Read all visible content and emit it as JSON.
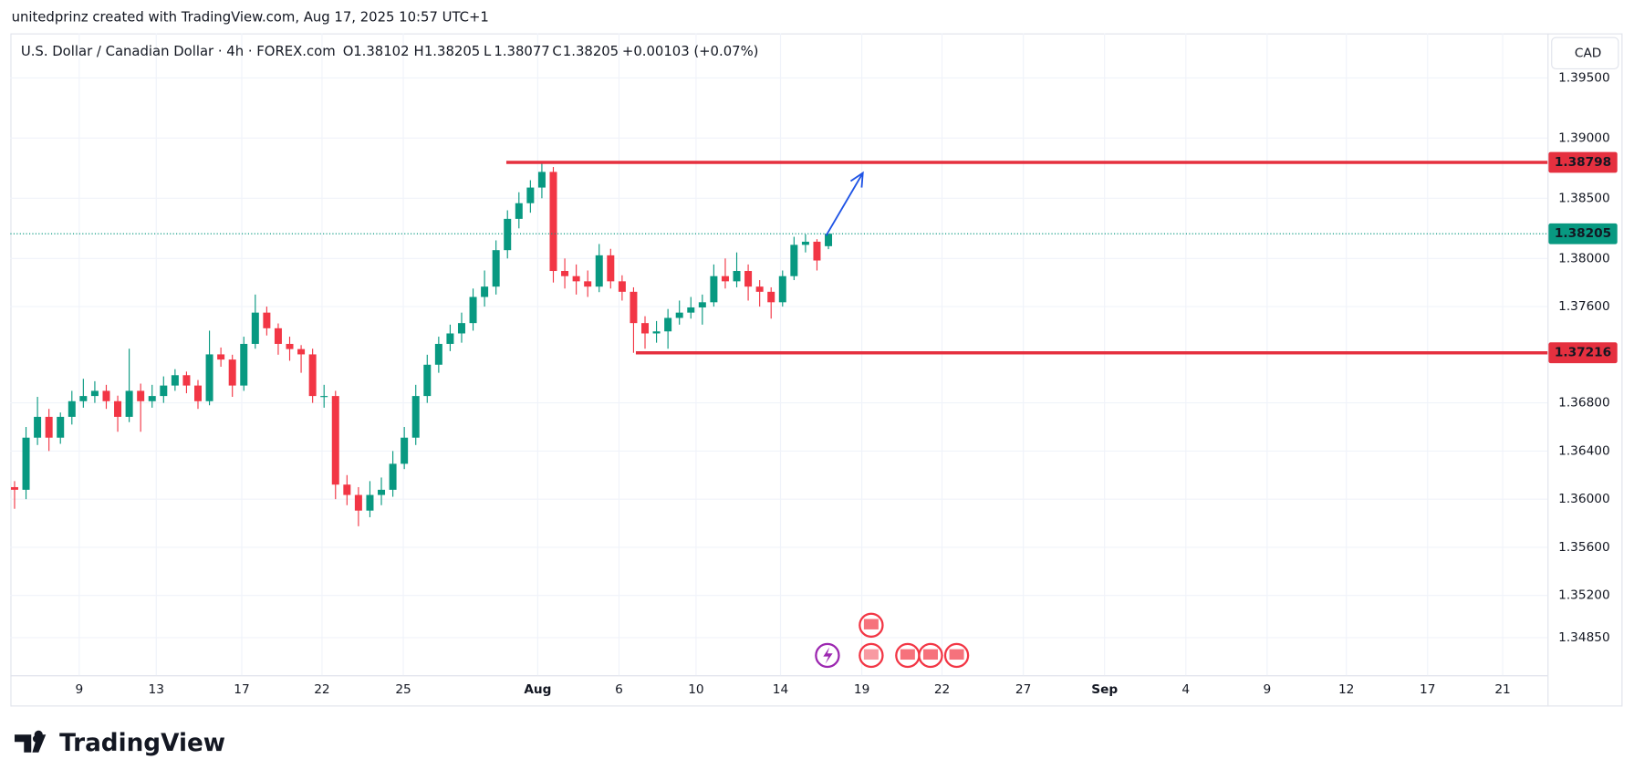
{
  "header": {
    "attribution": "unitedprinz created with TradingView.com, Aug 17, 2025 10:57 UTC+1",
    "symbol": "U.S. Dollar / Canadian Dollar · 4h · FOREX.com",
    "currency": "CAD"
  },
  "chart_data": {
    "type": "candlestick",
    "ohlc_labels": [
      "O",
      "H",
      "L",
      "C"
    ],
    "ohlc": [
      1.38102,
      1.38205,
      1.38077,
      1.38205
    ],
    "change": "+0.00103 (+0.07%)",
    "up_color": "#089981",
    "down_color": "#f23645",
    "candles": [
      [
        1.361,
        1.3615,
        1.3592,
        1.36078
      ],
      [
        1.36078,
        1.366,
        1.36,
        1.36511
      ],
      [
        1.36511,
        1.3685,
        1.3645,
        1.36684
      ],
      [
        1.36684,
        1.3675,
        1.364,
        1.36511
      ],
      [
        1.36511,
        1.3672,
        1.3646,
        1.36684
      ],
      [
        1.36684,
        1.369,
        1.3662,
        1.36814
      ],
      [
        1.36814,
        1.37,
        1.3676,
        1.36857
      ],
      [
        1.36857,
        1.3698,
        1.368,
        1.369
      ],
      [
        1.369,
        1.3695,
        1.3675,
        1.36814
      ],
      [
        1.36814,
        1.3686,
        1.3656,
        1.36684
      ],
      [
        1.36684,
        1.3725,
        1.3664,
        1.369
      ],
      [
        1.369,
        1.3696,
        1.3656,
        1.36814
      ],
      [
        1.36814,
        1.3695,
        1.3676,
        1.36857
      ],
      [
        1.36857,
        1.3702,
        1.368,
        1.36944
      ],
      [
        1.36944,
        1.3708,
        1.369,
        1.3703
      ],
      [
        1.3703,
        1.3706,
        1.3688,
        1.36944
      ],
      [
        1.36944,
        1.3699,
        1.3675,
        1.36814
      ],
      [
        1.36814,
        1.374,
        1.3678,
        1.37203
      ],
      [
        1.37203,
        1.3726,
        1.371,
        1.3716
      ],
      [
        1.3716,
        1.372,
        1.3685,
        1.36944
      ],
      [
        1.36944,
        1.3735,
        1.369,
        1.3729
      ],
      [
        1.3729,
        1.377,
        1.3725,
        1.3755
      ],
      [
        1.3755,
        1.376,
        1.3736,
        1.3742
      ],
      [
        1.3742,
        1.3746,
        1.372,
        1.3729
      ],
      [
        1.3729,
        1.3735,
        1.3715,
        1.37247
      ],
      [
        1.37247,
        1.3728,
        1.3705,
        1.37203
      ],
      [
        1.37203,
        1.3725,
        1.368,
        1.36857
      ],
      [
        1.36857,
        1.3695,
        1.3676,
        1.36857
      ],
      [
        1.36857,
        1.369,
        1.36,
        1.36121
      ],
      [
        1.36121,
        1.362,
        1.3595,
        1.36035
      ],
      [
        1.36035,
        1.361,
        1.35775,
        1.35905
      ],
      [
        1.35905,
        1.3615,
        1.3585,
        1.36035
      ],
      [
        1.36035,
        1.3618,
        1.3595,
        1.36078
      ],
      [
        1.36078,
        1.364,
        1.3602,
        1.36294
      ],
      [
        1.36294,
        1.366,
        1.3625,
        1.36511
      ],
      [
        1.36511,
        1.3695,
        1.3645,
        1.36857
      ],
      [
        1.36857,
        1.372,
        1.368,
        1.37117
      ],
      [
        1.37117,
        1.3735,
        1.3705,
        1.3729
      ],
      [
        1.3729,
        1.3745,
        1.3723,
        1.37377
      ],
      [
        1.37377,
        1.3755,
        1.373,
        1.37463
      ],
      [
        1.37463,
        1.3775,
        1.374,
        1.3768
      ],
      [
        1.3768,
        1.379,
        1.376,
        1.37766
      ],
      [
        1.37766,
        1.3815,
        1.377,
        1.38069
      ],
      [
        1.38069,
        1.384,
        1.38,
        1.38329
      ],
      [
        1.38329,
        1.3855,
        1.3825,
        1.38459
      ],
      [
        1.38459,
        1.3865,
        1.3838,
        1.38589
      ],
      [
        1.38589,
        1.38798,
        1.385,
        1.38719
      ],
      [
        1.38719,
        1.3876,
        1.378,
        1.37896
      ],
      [
        1.37896,
        1.38,
        1.3775,
        1.37853
      ],
      [
        1.37853,
        1.3795,
        1.377,
        1.3781
      ],
      [
        1.3781,
        1.379,
        1.3768,
        1.37766
      ],
      [
        1.37766,
        1.3812,
        1.3772,
        1.38026
      ],
      [
        1.38026,
        1.3808,
        1.3775,
        1.3781
      ],
      [
        1.3781,
        1.3786,
        1.3765,
        1.37723
      ],
      [
        1.37723,
        1.3776,
        1.37216,
        1.37463
      ],
      [
        1.37463,
        1.3752,
        1.3725,
        1.37377
      ],
      [
        1.37377,
        1.3748,
        1.373,
        1.37394
      ],
      [
        1.37394,
        1.3758,
        1.3725,
        1.37506
      ],
      [
        1.37506,
        1.3765,
        1.3745,
        1.3755
      ],
      [
        1.3755,
        1.3768,
        1.375,
        1.37593
      ],
      [
        1.37593,
        1.377,
        1.3745,
        1.37636
      ],
      [
        1.37636,
        1.3795,
        1.376,
        1.37853
      ],
      [
        1.37853,
        1.38,
        1.3775,
        1.3781
      ],
      [
        1.3781,
        1.3805,
        1.3776,
        1.37896
      ],
      [
        1.37896,
        1.3795,
        1.3765,
        1.37766
      ],
      [
        1.37766,
        1.3782,
        1.376,
        1.37723
      ],
      [
        1.37723,
        1.3776,
        1.375,
        1.37636
      ],
      [
        1.37636,
        1.379,
        1.376,
        1.37853
      ],
      [
        1.37853,
        1.3818,
        1.3782,
        1.38113
      ],
      [
        1.38113,
        1.382,
        1.3805,
        1.38139
      ],
      [
        1.38139,
        1.3816,
        1.379,
        1.37983
      ],
      [
        1.38102,
        1.38205,
        1.38077,
        1.38205
      ]
    ],
    "ylim": [
      1.34537,
      1.3987
    ],
    "yticks": [
      {
        "value": 1.395,
        "label": "1.39500"
      },
      {
        "value": 1.39,
        "label": "1.39000"
      },
      {
        "value": 1.385,
        "label": "1.38500"
      },
      {
        "value": 1.38,
        "label": "1.38000"
      },
      {
        "value": 1.376,
        "label": "1.37600"
      },
      {
        "value": 1.368,
        "label": "1.36800"
      },
      {
        "value": 1.364,
        "label": "1.36400"
      },
      {
        "value": 1.36,
        "label": "1.36000"
      },
      {
        "value": 1.356,
        "label": "1.35600"
      },
      {
        "value": 1.352,
        "label": "1.35200"
      },
      {
        "value": 1.3485,
        "label": "1.34850"
      }
    ],
    "xlim": [
      -0.18,
      133.73
    ],
    "xticks": [
      {
        "value": 5.64,
        "label": "9"
      },
      {
        "value": 12.36,
        "label": "13"
      },
      {
        "value": 19.82,
        "label": "17"
      },
      {
        "value": 26.82,
        "label": "22"
      },
      {
        "value": 33.91,
        "label": "25"
      },
      {
        "value": 45.64,
        "label": "Aug"
      },
      {
        "value": 52.73,
        "label": "6"
      },
      {
        "value": 59.45,
        "label": "10"
      },
      {
        "value": 66.82,
        "label": "14"
      },
      {
        "value": 73.91,
        "label": "19"
      },
      {
        "value": 80.91,
        "label": "22"
      },
      {
        "value": 88.0,
        "label": "27"
      },
      {
        "value": 95.09,
        "label": "Sep"
      },
      {
        "value": 102.18,
        "label": "4"
      },
      {
        "value": 109.27,
        "label": "9"
      },
      {
        "value": 116.18,
        "label": "12"
      },
      {
        "value": 123.27,
        "label": "17"
      },
      {
        "value": 129.82,
        "label": "21"
      }
    ],
    "grid": true,
    "levels": [
      {
        "value": 1.38798,
        "start": 42.9,
        "color": "#e5303f"
      },
      {
        "value": 1.37216,
        "start": 54.2,
        "color": "#e5303f"
      }
    ],
    "arrow": {
      "x": [
        70.8,
        74.0
      ],
      "y": [
        1.3819,
        1.3871
      ],
      "color": "#1e53e5"
    }
  },
  "brand": "TradingView"
}
